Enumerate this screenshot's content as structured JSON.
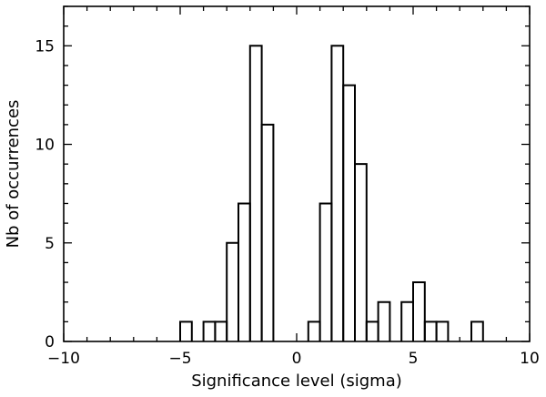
{
  "chart_data": {
    "type": "histogram",
    "title": "",
    "xlabel": "Significance level (sigma)",
    "ylabel": "Nb of occurrences",
    "xlim": [
      -10,
      10
    ],
    "ylim": [
      0,
      17
    ],
    "xticks": [
      -10,
      -5,
      0,
      5,
      10
    ],
    "yticks": [
      0,
      5,
      10,
      15
    ],
    "x_minor_step": 1,
    "y_minor_step": 1,
    "x_tick_labels": [
      "−10",
      "−5",
      "0",
      "5",
      "10"
    ],
    "y_tick_labels": [
      "0",
      "5",
      "10",
      "15"
    ],
    "grid": false,
    "legend": "none",
    "bin_width": 0.5,
    "bins": [
      {
        "x0": -5.0,
        "count": 1
      },
      {
        "x0": -4.0,
        "count": 1
      },
      {
        "x0": -3.5,
        "count": 1
      },
      {
        "x0": -3.0,
        "count": 5
      },
      {
        "x0": -2.5,
        "count": 7
      },
      {
        "x0": -2.0,
        "count": 15
      },
      {
        "x0": -1.5,
        "count": 11
      },
      {
        "x0": 0.5,
        "count": 1
      },
      {
        "x0": 1.0,
        "count": 7
      },
      {
        "x0": 1.5,
        "count": 15
      },
      {
        "x0": 2.0,
        "count": 13
      },
      {
        "x0": 2.5,
        "count": 9
      },
      {
        "x0": 3.0,
        "count": 1
      },
      {
        "x0": 3.5,
        "count": 2
      },
      {
        "x0": 4.5,
        "count": 2
      },
      {
        "x0": 5.0,
        "count": 3
      },
      {
        "x0": 5.5,
        "count": 1
      },
      {
        "x0": 6.0,
        "count": 1
      },
      {
        "x0": 7.5,
        "count": 1
      }
    ]
  }
}
